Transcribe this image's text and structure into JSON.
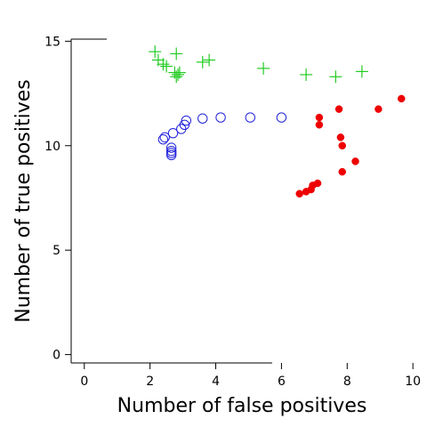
{
  "chart_data": {
    "type": "scatter",
    "title": "",
    "xlabel": "Number of false positives",
    "ylabel": "Number of true positives",
    "xlim": [
      -0.4,
      10.05
    ],
    "ylim": [
      -0.4,
      15.1
    ],
    "xticks": [
      0,
      2,
      4,
      6,
      8,
      10
    ],
    "yticks": [
      0,
      5,
      10,
      15
    ],
    "grid": false,
    "legend": "none",
    "series": [
      {
        "marker": "plus",
        "color": "#22cc22",
        "points": [
          [
            2.15,
            14.5
          ],
          [
            2.25,
            14.1
          ],
          [
            2.4,
            13.9
          ],
          [
            2.5,
            13.8
          ],
          [
            2.8,
            14.4
          ],
          [
            2.75,
            13.5
          ],
          [
            2.85,
            13.4
          ],
          [
            2.8,
            13.3
          ],
          [
            2.9,
            13.5
          ],
          [
            3.6,
            14.0
          ],
          [
            3.8,
            14.1
          ],
          [
            5.45,
            13.7
          ],
          [
            6.75,
            13.4
          ],
          [
            7.65,
            13.3
          ],
          [
            8.45,
            13.55
          ]
        ]
      },
      {
        "marker": "open-circle",
        "color": "#2222dd",
        "points": [
          [
            2.4,
            10.3
          ],
          [
            2.45,
            10.4
          ],
          [
            2.65,
            9.9
          ],
          [
            2.65,
            9.75
          ],
          [
            2.65,
            9.65
          ],
          [
            2.65,
            9.55
          ],
          [
            2.7,
            10.6
          ],
          [
            2.95,
            10.8
          ],
          [
            3.05,
            11.0
          ],
          [
            3.1,
            11.2
          ],
          [
            3.6,
            11.3
          ],
          [
            4.15,
            11.35
          ],
          [
            5.05,
            11.35
          ],
          [
            6.0,
            11.35
          ]
        ]
      },
      {
        "marker": "filled-circle",
        "color": "#ee0000",
        "points": [
          [
            6.55,
            7.7
          ],
          [
            6.75,
            7.8
          ],
          [
            6.9,
            7.9
          ],
          [
            6.95,
            8.1
          ],
          [
            7.1,
            8.2
          ],
          [
            7.15,
            11.35
          ],
          [
            7.15,
            11.0
          ],
          [
            7.75,
            11.75
          ],
          [
            7.8,
            10.4
          ],
          [
            7.85,
            10.0
          ],
          [
            7.85,
            8.75
          ],
          [
            8.25,
            9.25
          ],
          [
            8.95,
            11.75
          ],
          [
            9.65,
            12.25
          ]
        ]
      }
    ]
  }
}
